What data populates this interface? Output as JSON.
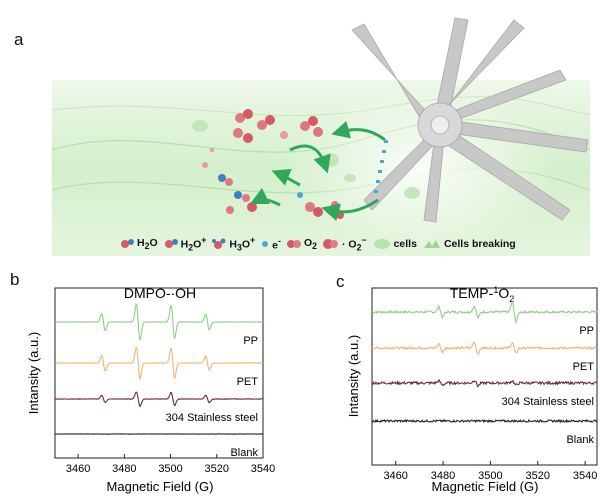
{
  "figure": {
    "panel_a": {
      "label": "a",
      "legend": [
        {
          "icon": "water-molecule-icon",
          "label_parts": [
            "H",
            "2",
            "O"
          ],
          "color": "#d85a66"
        },
        {
          "icon": "hydroxide-ion-icon",
          "label_parts": [
            "H",
            "2",
            "O",
            "+"
          ],
          "color": "#d85a66"
        },
        {
          "icon": "hydronium-icon",
          "label_parts": [
            "H",
            "3",
            "O",
            "+"
          ],
          "color": "#d85a66"
        },
        {
          "icon": "electron-icon",
          "label_parts": [
            "e",
            "-"
          ],
          "color": "#4ea6d8"
        },
        {
          "icon": "oxygen-icon",
          "label_parts": [
            "O",
            "2"
          ],
          "color": "#d8586a"
        },
        {
          "icon": "superoxide-icon",
          "label_parts": [
            "· O",
            "2",
            "−"
          ],
          "color": "#d8586a"
        },
        {
          "icon": "cell-icon",
          "label": "cells",
          "color": "#b9e2b1"
        },
        {
          "icon": "cell-breaking-icon",
          "label": "Cells breaking",
          "color": "#9fd58e"
        }
      ],
      "colors": {
        "background": "#d9f0d2",
        "arrow": "#2fa85a",
        "blade": "#c9c9c9"
      }
    },
    "panel_b": {
      "label": "b",
      "chart_data": {
        "type": "line",
        "title": "DMPO-·OH",
        "xlabel": "Magnetic Field (G)",
        "ylabel": "Intansity (a.u.)",
        "xlim": [
          3450,
          3540
        ],
        "xticks": [
          3460,
          3480,
          3500,
          3520,
          3540
        ],
        "yticks": [],
        "series": [
          {
            "name": "PP",
            "color": "#8fcf86",
            "offset": 3,
            "peaks": [
              {
                "x": 3471,
                "a": 1.2
              },
              {
                "x": 3486,
                "a": 2.5
              },
              {
                "x": 3501,
                "a": 2.3
              },
              {
                "x": 3516,
                "a": 1.1
              }
            ],
            "noise": 0.04
          },
          {
            "name": "PET",
            "color": "#f2b473",
            "offset": 2,
            "peaks": [
              {
                "x": 3471,
                "a": 1.1
              },
              {
                "x": 3486,
                "a": 2.2
              },
              {
                "x": 3501,
                "a": 2.1
              },
              {
                "x": 3516,
                "a": 1.0
              }
            ],
            "noise": 0.04
          },
          {
            "name": "304 Stainless steel",
            "color": "#6b2f33",
            "offset": 1,
            "peaks": [
              {
                "x": 3471,
                "a": 0.5
              },
              {
                "x": 3486,
                "a": 1.0
              },
              {
                "x": 3501,
                "a": 0.9
              },
              {
                "x": 3516,
                "a": 0.5
              }
            ],
            "noise": 0.04
          },
          {
            "name": "Blank",
            "color": "#222222",
            "offset": 0,
            "peaks": [],
            "noise": 0.03
          }
        ]
      }
    },
    "panel_c": {
      "label": "c",
      "chart_data": {
        "type": "line",
        "title_parts": [
          "TEMP-",
          "1",
          "O",
          "2"
        ],
        "xlabel": "Magnetic Field (G)",
        "ylabel": "Intansity (a.u.)",
        "xlim": [
          3450,
          3545
        ],
        "xticks": [
          3460,
          3480,
          3500,
          3520,
          3540
        ],
        "series": [
          {
            "name": "PP",
            "color": "#8fcf86",
            "offset": 3,
            "peaks": [
              {
                "x": 3479,
                "a": 0.7
              },
              {
                "x": 3494,
                "a": 0.8
              },
              {
                "x": 3510,
                "a": 1.3
              }
            ],
            "noise": 0.15
          },
          {
            "name": "PET",
            "color": "#f2b473",
            "offset": 2,
            "peaks": [
              {
                "x": 3479,
                "a": 0.6
              },
              {
                "x": 3494,
                "a": 0.8
              },
              {
                "x": 3510,
                "a": 0.7
              }
            ],
            "noise": 0.15
          },
          {
            "name": "304 Stainless steel",
            "color": "#6b2f33",
            "offset": 1,
            "peaks": [
              {
                "x": 3479,
                "a": 0.3
              },
              {
                "x": 3494,
                "a": 0.4
              },
              {
                "x": 3510,
                "a": 0.3
              }
            ],
            "noise": 0.18
          },
          {
            "name": "Blank",
            "color": "#222222",
            "offset": 0,
            "peaks": [],
            "noise": 0.15
          }
        ]
      }
    }
  }
}
